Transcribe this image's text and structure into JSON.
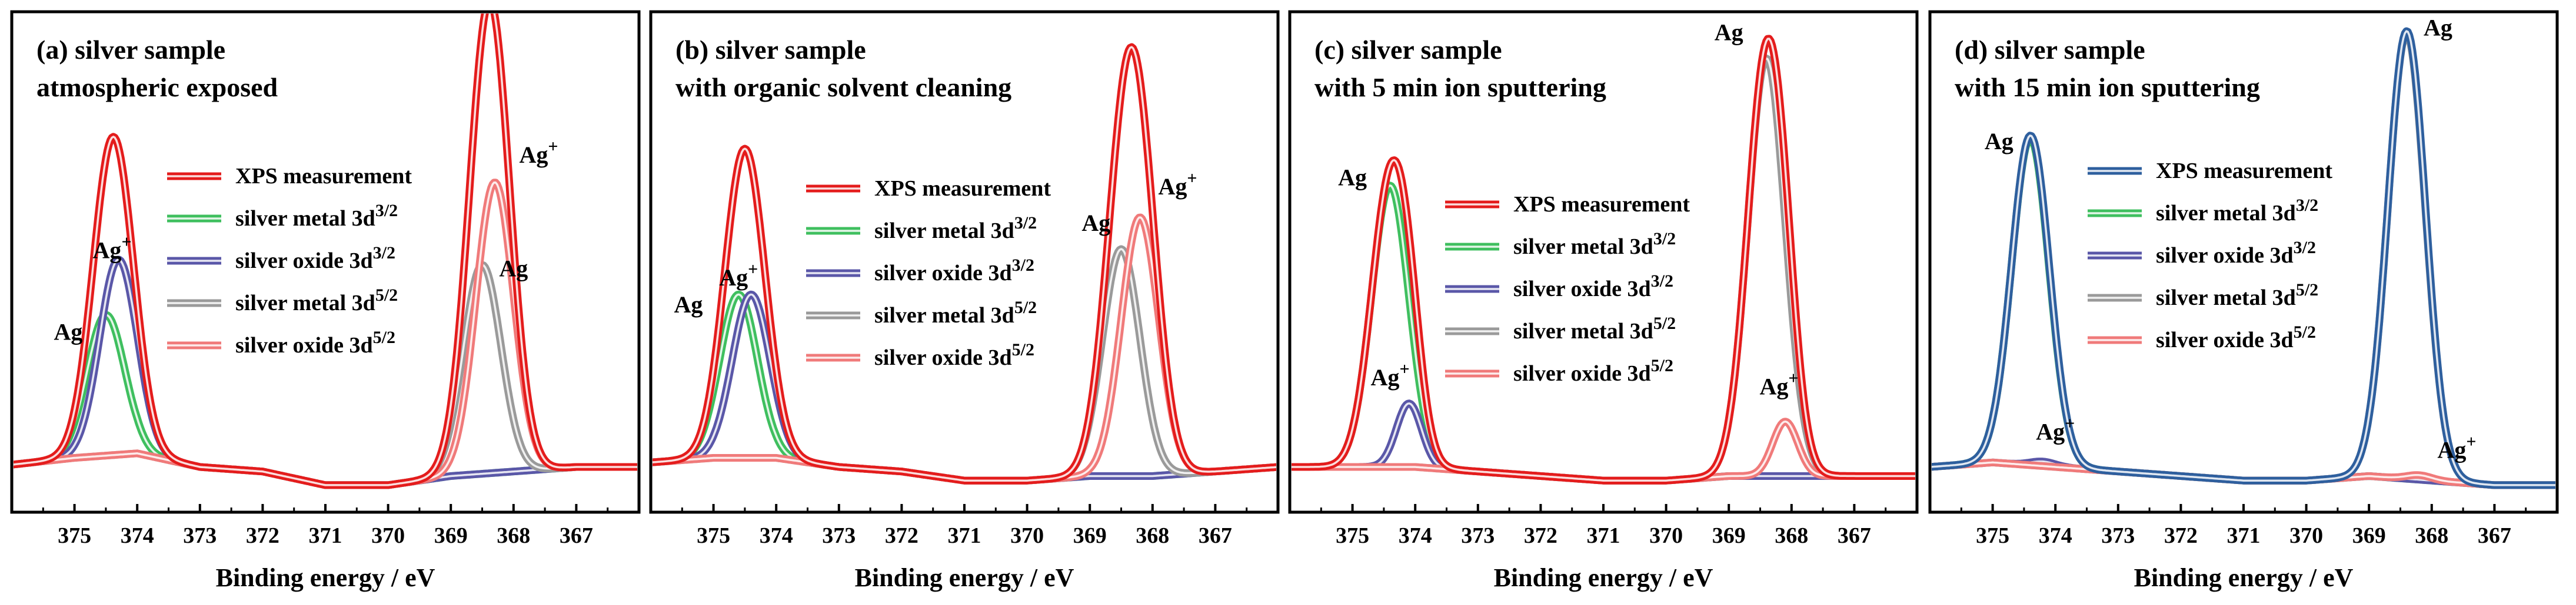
{
  "chart_data": [
    {
      "type": "line",
      "title_line1": "(a) silver sample",
      "title_line2": "atmospheric exposed",
      "xlabel": "Binding energy / eV",
      "ylabel": "",
      "xlim": [
        376.0,
        366.0
      ],
      "ylim": [
        -0.05,
        1.0
      ],
      "xticks": [
        375,
        374,
        373,
        372,
        371,
        370,
        369,
        368,
        367
      ],
      "legend": [
        {
          "prefix": "XPS measurement",
          "sup": "",
          "color": "#e41c1c"
        },
        {
          "prefix": "silver metal 3d",
          "sup": "3/2",
          "color": "#3fbf5f"
        },
        {
          "prefix": "silver oxide 3d",
          "sup": "3/2",
          "color": "#5a57a8"
        },
        {
          "prefix": "silver metal 3d",
          "sup": "5/2",
          "color": "#9a9a9a"
        },
        {
          "prefix": "silver oxide 3d",
          "sup": "5/2",
          "color": "#f07a7a"
        }
      ],
      "baseline": {
        "x": [
          376,
          375,
          374,
          373,
          372,
          371,
          370,
          369,
          368,
          367,
          366
        ],
        "y": [
          0.005,
          0.02,
          0.03,
          0.0,
          -0.01,
          -0.04,
          -0.04,
          -0.02,
          -0.01,
          0.0,
          0.0
        ]
      },
      "peaks": [
        {
          "component": "silver metal 3d 3/2",
          "center": 374.5,
          "height": 0.31,
          "width": 0.3,
          "color": "#3fbf5f"
        },
        {
          "component": "silver oxide 3d 3/2",
          "center": 374.3,
          "height": 0.43,
          "width": 0.3,
          "color": "#5a57a8"
        },
        {
          "component": "silver metal 3d 5/2",
          "center": 368.5,
          "height": 0.46,
          "width": 0.3,
          "color": "#9a9a9a"
        },
        {
          "component": "silver oxide 3d 5/2",
          "center": 368.3,
          "height": 0.64,
          "width": 0.3,
          "color": "#f07a7a"
        }
      ],
      "annotations": [
        {
          "text": "Ag",
          "sup": "",
          "x": 375.1,
          "y": 0.28
        },
        {
          "text": "Ag",
          "sup": "+",
          "x": 374.4,
          "y": 0.46
        },
        {
          "text": "Ag",
          "sup": "",
          "x": 368.0,
          "y": 0.42
        },
        {
          "text": "Ag",
          "sup": "+",
          "x": 367.6,
          "y": 0.67
        }
      ]
    },
    {
      "type": "line",
      "title_line1": "(b) silver sample",
      "title_line2": "with organic solvent cleaning",
      "xlabel": "Binding energy / eV",
      "ylabel": "",
      "xlim": [
        376.0,
        366.0
      ],
      "ylim": [
        -0.05,
        1.0
      ],
      "xticks": [
        375,
        374,
        373,
        372,
        371,
        370,
        369,
        368,
        367
      ],
      "legend": [
        {
          "prefix": "XPS measurement",
          "sup": "",
          "color": "#e41c1c"
        },
        {
          "prefix": "silver metal 3d",
          "sup": "3/2",
          "color": "#3fbf5f"
        },
        {
          "prefix": "silver oxide 3d",
          "sup": "3/2",
          "color": "#5a57a8"
        },
        {
          "prefix": "silver metal 3d",
          "sup": "5/2",
          "color": "#9a9a9a"
        },
        {
          "prefix": "silver oxide 3d",
          "sup": "5/2",
          "color": "#f07a7a"
        }
      ],
      "baseline": {
        "x": [
          376,
          375,
          374,
          373,
          372,
          371,
          370,
          369,
          368,
          367,
          366
        ],
        "y": [
          0.01,
          0.02,
          0.02,
          0.0,
          -0.01,
          -0.03,
          -0.03,
          -0.02,
          -0.02,
          -0.01,
          0.0
        ]
      },
      "peaks": [
        {
          "component": "silver metal 3d 3/2",
          "center": 374.6,
          "height": 0.36,
          "width": 0.3,
          "color": "#3fbf5f"
        },
        {
          "component": "silver oxide 3d 3/2",
          "center": 374.4,
          "height": 0.36,
          "width": 0.3,
          "color": "#5a57a8"
        },
        {
          "component": "silver metal 3d 5/2",
          "center": 368.5,
          "height": 0.5,
          "width": 0.3,
          "color": "#9a9a9a"
        },
        {
          "component": "silver oxide 3d 5/2",
          "center": 368.2,
          "height": 0.57,
          "width": 0.3,
          "color": "#f07a7a"
        }
      ],
      "annotations": [
        {
          "text": "Ag",
          "sup": "",
          "x": 375.4,
          "y": 0.34
        },
        {
          "text": "Ag",
          "sup": "+",
          "x": 374.6,
          "y": 0.4
        },
        {
          "text": "Ag",
          "sup": "",
          "x": 368.9,
          "y": 0.52
        },
        {
          "text": "Ag",
          "sup": "+",
          "x": 367.6,
          "y": 0.6
        }
      ]
    },
    {
      "type": "line",
      "title_line1": "(c) silver sample",
      "title_line2": "with 5 min ion sputtering",
      "xlabel": "Binding energy / eV",
      "ylabel": "",
      "xlim": [
        376.0,
        366.0
      ],
      "ylim": [
        -0.05,
        1.0
      ],
      "xticks": [
        375,
        374,
        373,
        372,
        371,
        370,
        369,
        368,
        367
      ],
      "legend": [
        {
          "prefix": "XPS measurement",
          "sup": "",
          "color": "#e41c1c"
        },
        {
          "prefix": "silver metal 3d",
          "sup": "3/2",
          "color": "#3fbf5f"
        },
        {
          "prefix": "silver oxide 3d",
          "sup": "3/2",
          "color": "#5a57a8"
        },
        {
          "prefix": "silver metal 3d",
          "sup": "5/2",
          "color": "#9a9a9a"
        },
        {
          "prefix": "silver oxide 3d",
          "sup": "5/2",
          "color": "#f07a7a"
        }
      ],
      "baseline": {
        "x": [
          376,
          375,
          374,
          373,
          372,
          371,
          370,
          369,
          368,
          367,
          366
        ],
        "y": [
          0.0,
          0.0,
          0.0,
          -0.01,
          -0.02,
          -0.03,
          -0.03,
          -0.02,
          -0.02,
          -0.02,
          -0.02
        ]
      },
      "peaks": [
        {
          "component": "silver metal 3d 3/2",
          "center": 374.4,
          "height": 0.62,
          "width": 0.3,
          "color": "#3fbf5f"
        },
        {
          "component": "silver oxide 3d 3/2",
          "center": 374.1,
          "height": 0.14,
          "width": 0.2,
          "color": "#5a57a8"
        },
        {
          "component": "silver metal 3d 5/2",
          "center": 368.4,
          "height": 0.92,
          "width": 0.3,
          "color": "#9a9a9a"
        },
        {
          "component": "silver oxide 3d 5/2",
          "center": 368.1,
          "height": 0.12,
          "width": 0.2,
          "color": "#f07a7a"
        }
      ],
      "annotations": [
        {
          "text": "Ag",
          "sup": "",
          "x": 375.0,
          "y": 0.62
        },
        {
          "text": "Ag",
          "sup": "+",
          "x": 374.4,
          "y": 0.18
        },
        {
          "text": "Ag",
          "sup": "",
          "x": 369.0,
          "y": 0.94
        },
        {
          "text": "Ag",
          "sup": "+",
          "x": 368.2,
          "y": 0.16
        }
      ]
    },
    {
      "type": "line",
      "title_line1": "(d) silver sample",
      "title_line2": "with 15 min ion sputtering",
      "xlabel": "Binding energy / eV",
      "ylabel": "",
      "xlim": [
        376.0,
        366.0
      ],
      "ylim": [
        -0.05,
        1.0
      ],
      "xticks": [
        375,
        374,
        373,
        372,
        371,
        370,
        369,
        368,
        367
      ],
      "legend": [
        {
          "prefix": "XPS measurement",
          "sup": "",
          "color": "#2e5f9e"
        },
        {
          "prefix": "silver metal 3d",
          "sup": "3/2",
          "color": "#3fbf5f"
        },
        {
          "prefix": "silver oxide 3d",
          "sup": "3/2",
          "color": "#5a57a8"
        },
        {
          "prefix": "silver metal 3d",
          "sup": "5/2",
          "color": "#9a9a9a"
        },
        {
          "prefix": "silver oxide 3d",
          "sup": "5/2",
          "color": "#f07a7a"
        }
      ],
      "baseline": {
        "x": [
          376,
          375,
          374,
          373,
          372,
          371,
          370,
          369,
          368,
          367,
          366
        ],
        "y": [
          0.0,
          0.01,
          0.0,
          -0.01,
          -0.02,
          -0.03,
          -0.03,
          -0.02,
          -0.03,
          -0.04,
          -0.04
        ]
      },
      "peaks": [
        {
          "component": "silver metal 3d 3/2",
          "center": 374.4,
          "height": 0.72,
          "width": 0.3,
          "color": "#3fbf5f"
        },
        {
          "component": "silver oxide 3d 3/2",
          "center": 374.2,
          "height": 0.01,
          "width": 0.2,
          "color": "#5a57a8"
        },
        {
          "component": "silver metal 3d 5/2",
          "center": 368.4,
          "height": 0.98,
          "width": 0.3,
          "color": "#9a9a9a"
        },
        {
          "component": "silver oxide 3d 5/2",
          "center": 368.2,
          "height": 0.01,
          "width": 0.2,
          "color": "#f07a7a"
        }
      ],
      "annotations": [
        {
          "text": "Ag",
          "sup": "",
          "x": 374.9,
          "y": 0.7
        },
        {
          "text": "Ag",
          "sup": "+",
          "x": 374.0,
          "y": 0.06
        },
        {
          "text": "Ag",
          "sup": "",
          "x": 367.9,
          "y": 0.95
        },
        {
          "text": "Ag",
          "sup": "+",
          "x": 367.6,
          "y": 0.02
        }
      ]
    }
  ]
}
